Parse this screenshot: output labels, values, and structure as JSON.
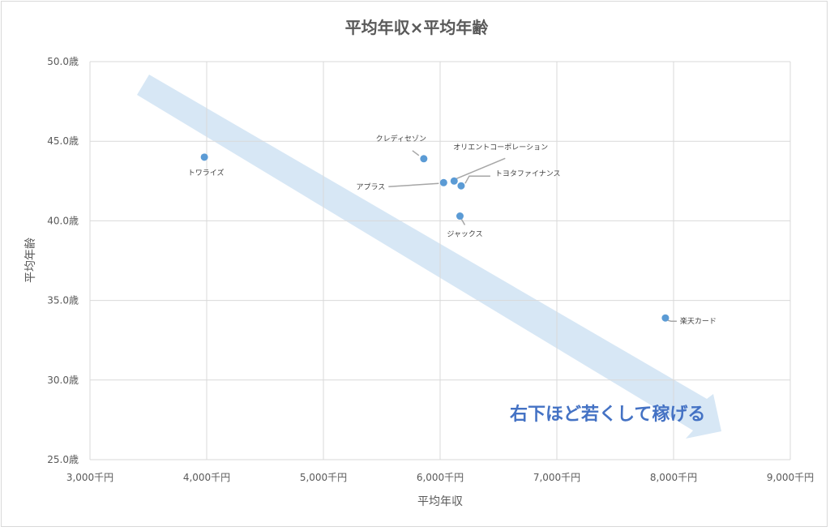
{
  "chart_data": {
    "type": "scatter",
    "title": "平均年収×平均年齢",
    "xlabel": "平均年収",
    "ylabel": "平均年齢",
    "xlim": [
      3000,
      9000
    ],
    "ylim": [
      25,
      50
    ],
    "x_ticks": [
      3000,
      4000,
      5000,
      6000,
      7000,
      8000,
      9000
    ],
    "y_ticks": [
      25,
      30,
      35,
      40,
      45,
      50
    ],
    "x_tick_labels": [
      "3,000千円",
      "4,000千円",
      "5,000千円",
      "6,000千円",
      "7,000千円",
      "8,000千円",
      "9,000千円"
    ],
    "y_tick_labels": [
      "25.0歳",
      "30.0歳",
      "35.0歳",
      "40.0歳",
      "45.0歳",
      "50.0歳"
    ],
    "grid": true,
    "legend": "none",
    "point_color": "#5b9bd5",
    "points": [
      {
        "label": "トワライズ",
        "x": 3980,
        "y": 44.0
      },
      {
        "label": "クレディセゾン",
        "x": 5860,
        "y": 43.9
      },
      {
        "label": "アプラス",
        "x": 6030,
        "y": 42.4
      },
      {
        "label": "オリエントコーポレーション",
        "x": 6120,
        "y": 42.5
      },
      {
        "label": "トヨタファイナンス",
        "x": 6180,
        "y": 42.2
      },
      {
        "label": "ジャックス",
        "x": 6170,
        "y": 40.3
      },
      {
        "label": "楽天カード",
        "x": 7930,
        "y": 33.9
      }
    ],
    "annotation": {
      "text": "右下ほど若くして稼げる",
      "color": "#4472c4",
      "arrow_color": "#bdd7ee"
    }
  }
}
